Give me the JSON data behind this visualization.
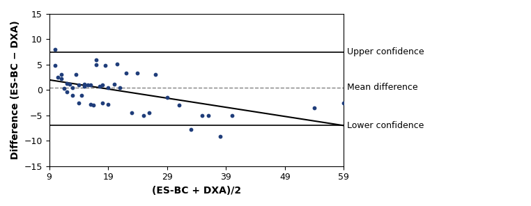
{
  "scatter_x": [
    10,
    10,
    10.5,
    11,
    11,
    11.5,
    12,
    12,
    12.5,
    13,
    13,
    13.5,
    14,
    14,
    14.5,
    15,
    15,
    15.5,
    16,
    16,
    16.5,
    17,
    17,
    17.5,
    18,
    18,
    18.5,
    19,
    19,
    20,
    20.5,
    21,
    22,
    23,
    24,
    25,
    26,
    27,
    29,
    31,
    33,
    35,
    36,
    38,
    40,
    54,
    59
  ],
  "scatter_y": [
    8.0,
    4.8,
    2.5,
    2.2,
    3.0,
    0.3,
    1.3,
    -0.3,
    1.2,
    -1.0,
    0.5,
    3.0,
    1.0,
    -2.5,
    -1.0,
    1.1,
    0.8,
    1.0,
    1.0,
    -2.8,
    -3.0,
    6.0,
    5.0,
    0.8,
    1.0,
    -2.5,
    4.8,
    0.5,
    -2.8,
    1.2,
    5.1,
    0.5,
    3.3,
    -4.5,
    3.3,
    -5.0,
    -4.5,
    3.0,
    -1.5,
    -3.0,
    -7.8,
    -5.0,
    -5.0,
    -9.2,
    -5.0,
    -3.5,
    -2.5
  ],
  "upper_confidence": 7.5,
  "lower_confidence": -7.0,
  "mean_difference": 0.5,
  "trend_x": [
    9,
    59
  ],
  "trend_y": [
    2.0,
    -7.0
  ],
  "xlim": [
    9,
    59
  ],
  "ylim": [
    -15,
    15
  ],
  "xticks": [
    9,
    19,
    29,
    39,
    49,
    59
  ],
  "yticks": [
    -15,
    -10,
    -5,
    0,
    5,
    10,
    15
  ],
  "xlabel": "(ES-BC + DXA)/2",
  "ylabel": "Difference (ES-BC − DXA)",
  "label_upper": "Upper confidence",
  "label_mean": "Mean difference",
  "label_lower": "Lower confidence",
  "dot_color": "#1f3d7a",
  "line_color": "black",
  "mean_line_color": "gray",
  "annotation_fontsize": 9,
  "axis_label_fontsize": 10
}
